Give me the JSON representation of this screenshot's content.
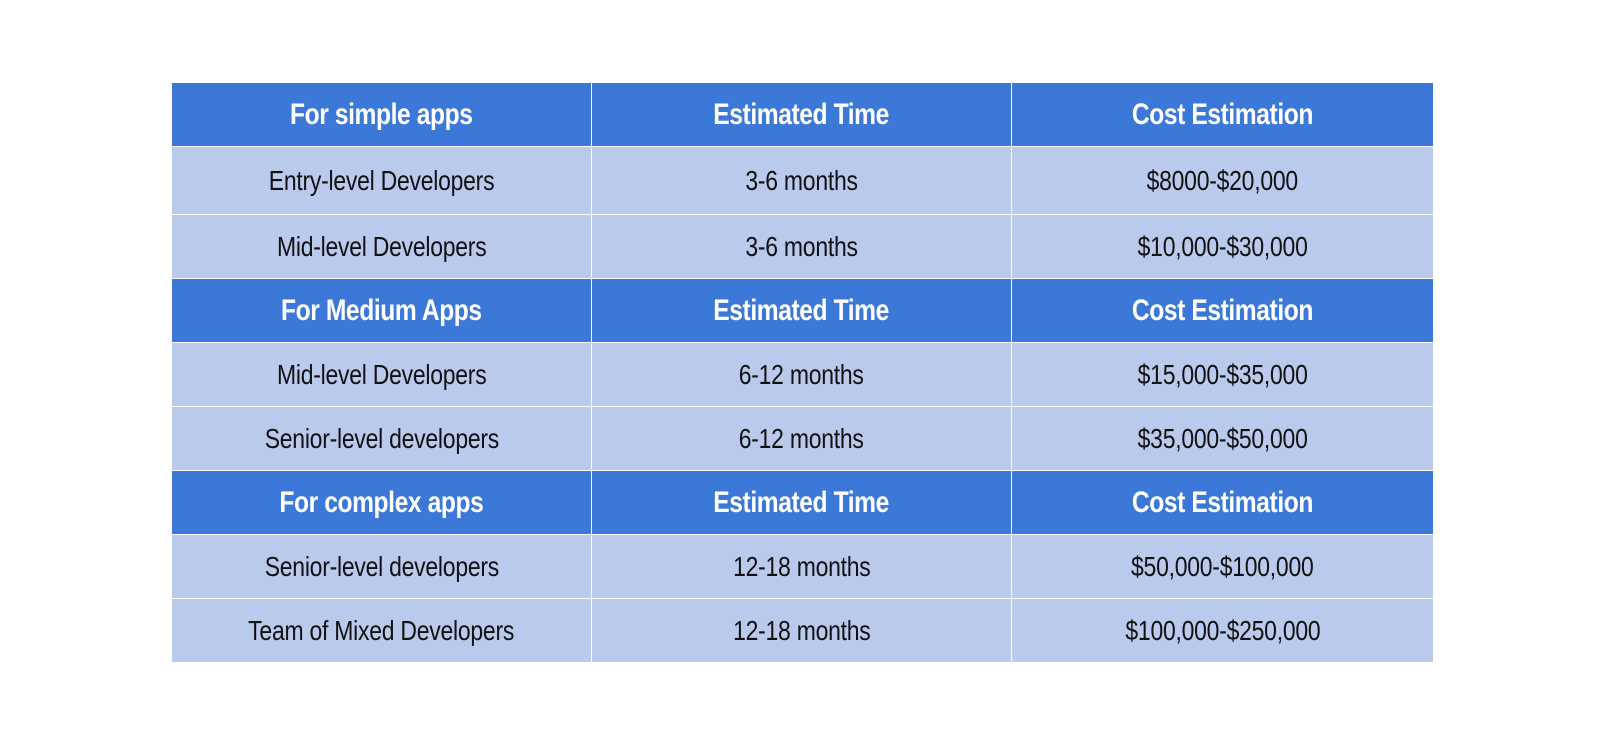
{
  "table": {
    "sections": [
      {
        "header": [
          "For simple apps",
          "Estimated Time",
          "Cost Estimation"
        ],
        "rows": [
          [
            "Entry-level Developers",
            "3-6 months",
            "$8000-$20,000"
          ],
          [
            "Mid-level Developers",
            "3-6 months",
            "$10,000-$30,000"
          ]
        ]
      },
      {
        "header": [
          "For Medium Apps",
          "Estimated Time",
          "Cost Estimation"
        ],
        "rows": [
          [
            "Mid-level Developers",
            "6-12 months",
            "$15,000-$35,000"
          ],
          [
            "Senior-level developers",
            "6-12 months",
            "$35,000-$50,000"
          ]
        ]
      },
      {
        "header": [
          "For complex apps",
          "Estimated Time",
          "Cost Estimation"
        ],
        "rows": [
          [
            "Senior-level developers",
            "12-18 months",
            "$50,000-$100,000"
          ],
          [
            "Team of Mixed Developers",
            "12-18 months",
            "$100,000-$250,000"
          ]
        ]
      }
    ]
  },
  "colors": {
    "header_bg": "#3c78d8",
    "row_bg": "#b9caed",
    "header_text": "#ffffff",
    "row_text": "#111111"
  }
}
